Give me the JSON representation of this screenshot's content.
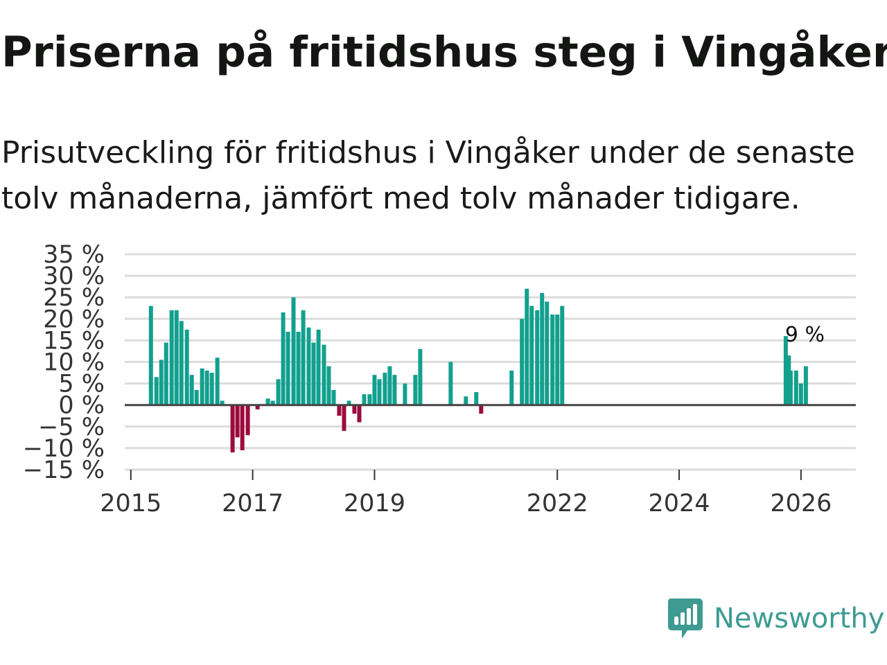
{
  "title": "Priserna på fritidshus steg i Vingåker",
  "subtitle": "Prisutveckling för fritidshus i Vingåker under de senaste tolv månaderna, jämfört med tolv månader tidigare.",
  "brand": {
    "name": "Newsworthy",
    "color": "#3d9b92",
    "icon": "newsworthy-logo-icon"
  },
  "chart_data": {
    "type": "bar",
    "title": "",
    "xlabel": "",
    "ylabel": "",
    "ylim": [
      -15,
      35
    ],
    "xlim": [
      2014.9,
      2026.9
    ],
    "yticks": [
      -15,
      -10,
      -5,
      0,
      5,
      10,
      15,
      20,
      25,
      30,
      35
    ],
    "ytick_labels": [
      "−15 %",
      "−10 %",
      "−5 %",
      "0 %",
      "5 %",
      "10 %",
      "15 %",
      "20 %",
      "25 %",
      "30 %",
      "35 %"
    ],
    "xticks": [
      2015,
      2017,
      2019,
      2022,
      2024,
      2026
    ],
    "xtick_labels": [
      "2015",
      "2017",
      "2019",
      "2022",
      "2024",
      "2026"
    ],
    "positive_color": "#12a08e",
    "negative_color": "#9b0a3e",
    "last_value_label": "9 %",
    "series": [
      {
        "name": "Prisutveckling",
        "points": [
          {
            "x": 2015.33,
            "y": 23
          },
          {
            "x": 2015.42,
            "y": 6.5
          },
          {
            "x": 2015.5,
            "y": 10.5
          },
          {
            "x": 2015.58,
            "y": 14.5
          },
          {
            "x": 2015.67,
            "y": 22
          },
          {
            "x": 2015.75,
            "y": 22
          },
          {
            "x": 2015.83,
            "y": 19.5
          },
          {
            "x": 2015.92,
            "y": 17.5
          },
          {
            "x": 2016.0,
            "y": 7
          },
          {
            "x": 2016.08,
            "y": 3.5
          },
          {
            "x": 2016.17,
            "y": 8.5
          },
          {
            "x": 2016.25,
            "y": 8
          },
          {
            "x": 2016.33,
            "y": 7.5
          },
          {
            "x": 2016.42,
            "y": 11
          },
          {
            "x": 2016.5,
            "y": 1
          },
          {
            "x": 2016.67,
            "y": -11
          },
          {
            "x": 2016.75,
            "y": -7.5
          },
          {
            "x": 2016.83,
            "y": -10.5
          },
          {
            "x": 2016.92,
            "y": -7
          },
          {
            "x": 2017.08,
            "y": -1
          },
          {
            "x": 2017.25,
            "y": 1.5
          },
          {
            "x": 2017.33,
            "y": 1
          },
          {
            "x": 2017.42,
            "y": 6
          },
          {
            "x": 2017.5,
            "y": 21.5
          },
          {
            "x": 2017.58,
            "y": 17
          },
          {
            "x": 2017.67,
            "y": 25
          },
          {
            "x": 2017.75,
            "y": 17
          },
          {
            "x": 2017.83,
            "y": 22
          },
          {
            "x": 2017.92,
            "y": 18
          },
          {
            "x": 2018.0,
            "y": 14.5
          },
          {
            "x": 2018.08,
            "y": 17.5
          },
          {
            "x": 2018.17,
            "y": 14
          },
          {
            "x": 2018.25,
            "y": 9
          },
          {
            "x": 2018.33,
            "y": 3.5
          },
          {
            "x": 2018.42,
            "y": -2.5
          },
          {
            "x": 2018.5,
            "y": -6
          },
          {
            "x": 2018.58,
            "y": 1
          },
          {
            "x": 2018.67,
            "y": -2
          },
          {
            "x": 2018.75,
            "y": -4
          },
          {
            "x": 2018.83,
            "y": 2.5
          },
          {
            "x": 2018.92,
            "y": 2.5
          },
          {
            "x": 2019.0,
            "y": 7
          },
          {
            "x": 2019.08,
            "y": 6
          },
          {
            "x": 2019.17,
            "y": 7.5
          },
          {
            "x": 2019.25,
            "y": 9
          },
          {
            "x": 2019.33,
            "y": 7
          },
          {
            "x": 2019.5,
            "y": 5
          },
          {
            "x": 2019.67,
            "y": 7
          },
          {
            "x": 2019.75,
            "y": 13
          },
          {
            "x": 2020.25,
            "y": 10
          },
          {
            "x": 2020.5,
            "y": 2
          },
          {
            "x": 2020.67,
            "y": 3
          },
          {
            "x": 2020.75,
            "y": -2
          },
          {
            "x": 2021.25,
            "y": 8
          },
          {
            "x": 2021.42,
            "y": 20
          },
          {
            "x": 2021.5,
            "y": 27
          },
          {
            "x": 2021.58,
            "y": 23
          },
          {
            "x": 2021.67,
            "y": 22
          },
          {
            "x": 2021.75,
            "y": 26
          },
          {
            "x": 2021.83,
            "y": 24
          },
          {
            "x": 2021.92,
            "y": 21
          },
          {
            "x": 2022.0,
            "y": 21
          },
          {
            "x": 2022.08,
            "y": 23
          },
          {
            "x": 2025.75,
            "y": 16
          },
          {
            "x": 2025.8,
            "y": 11.5
          },
          {
            "x": 2025.83,
            "y": 8
          },
          {
            "x": 2025.92,
            "y": 8
          },
          {
            "x": 2026.0,
            "y": 5
          },
          {
            "x": 2026.08,
            "y": 9
          }
        ]
      }
    ]
  }
}
